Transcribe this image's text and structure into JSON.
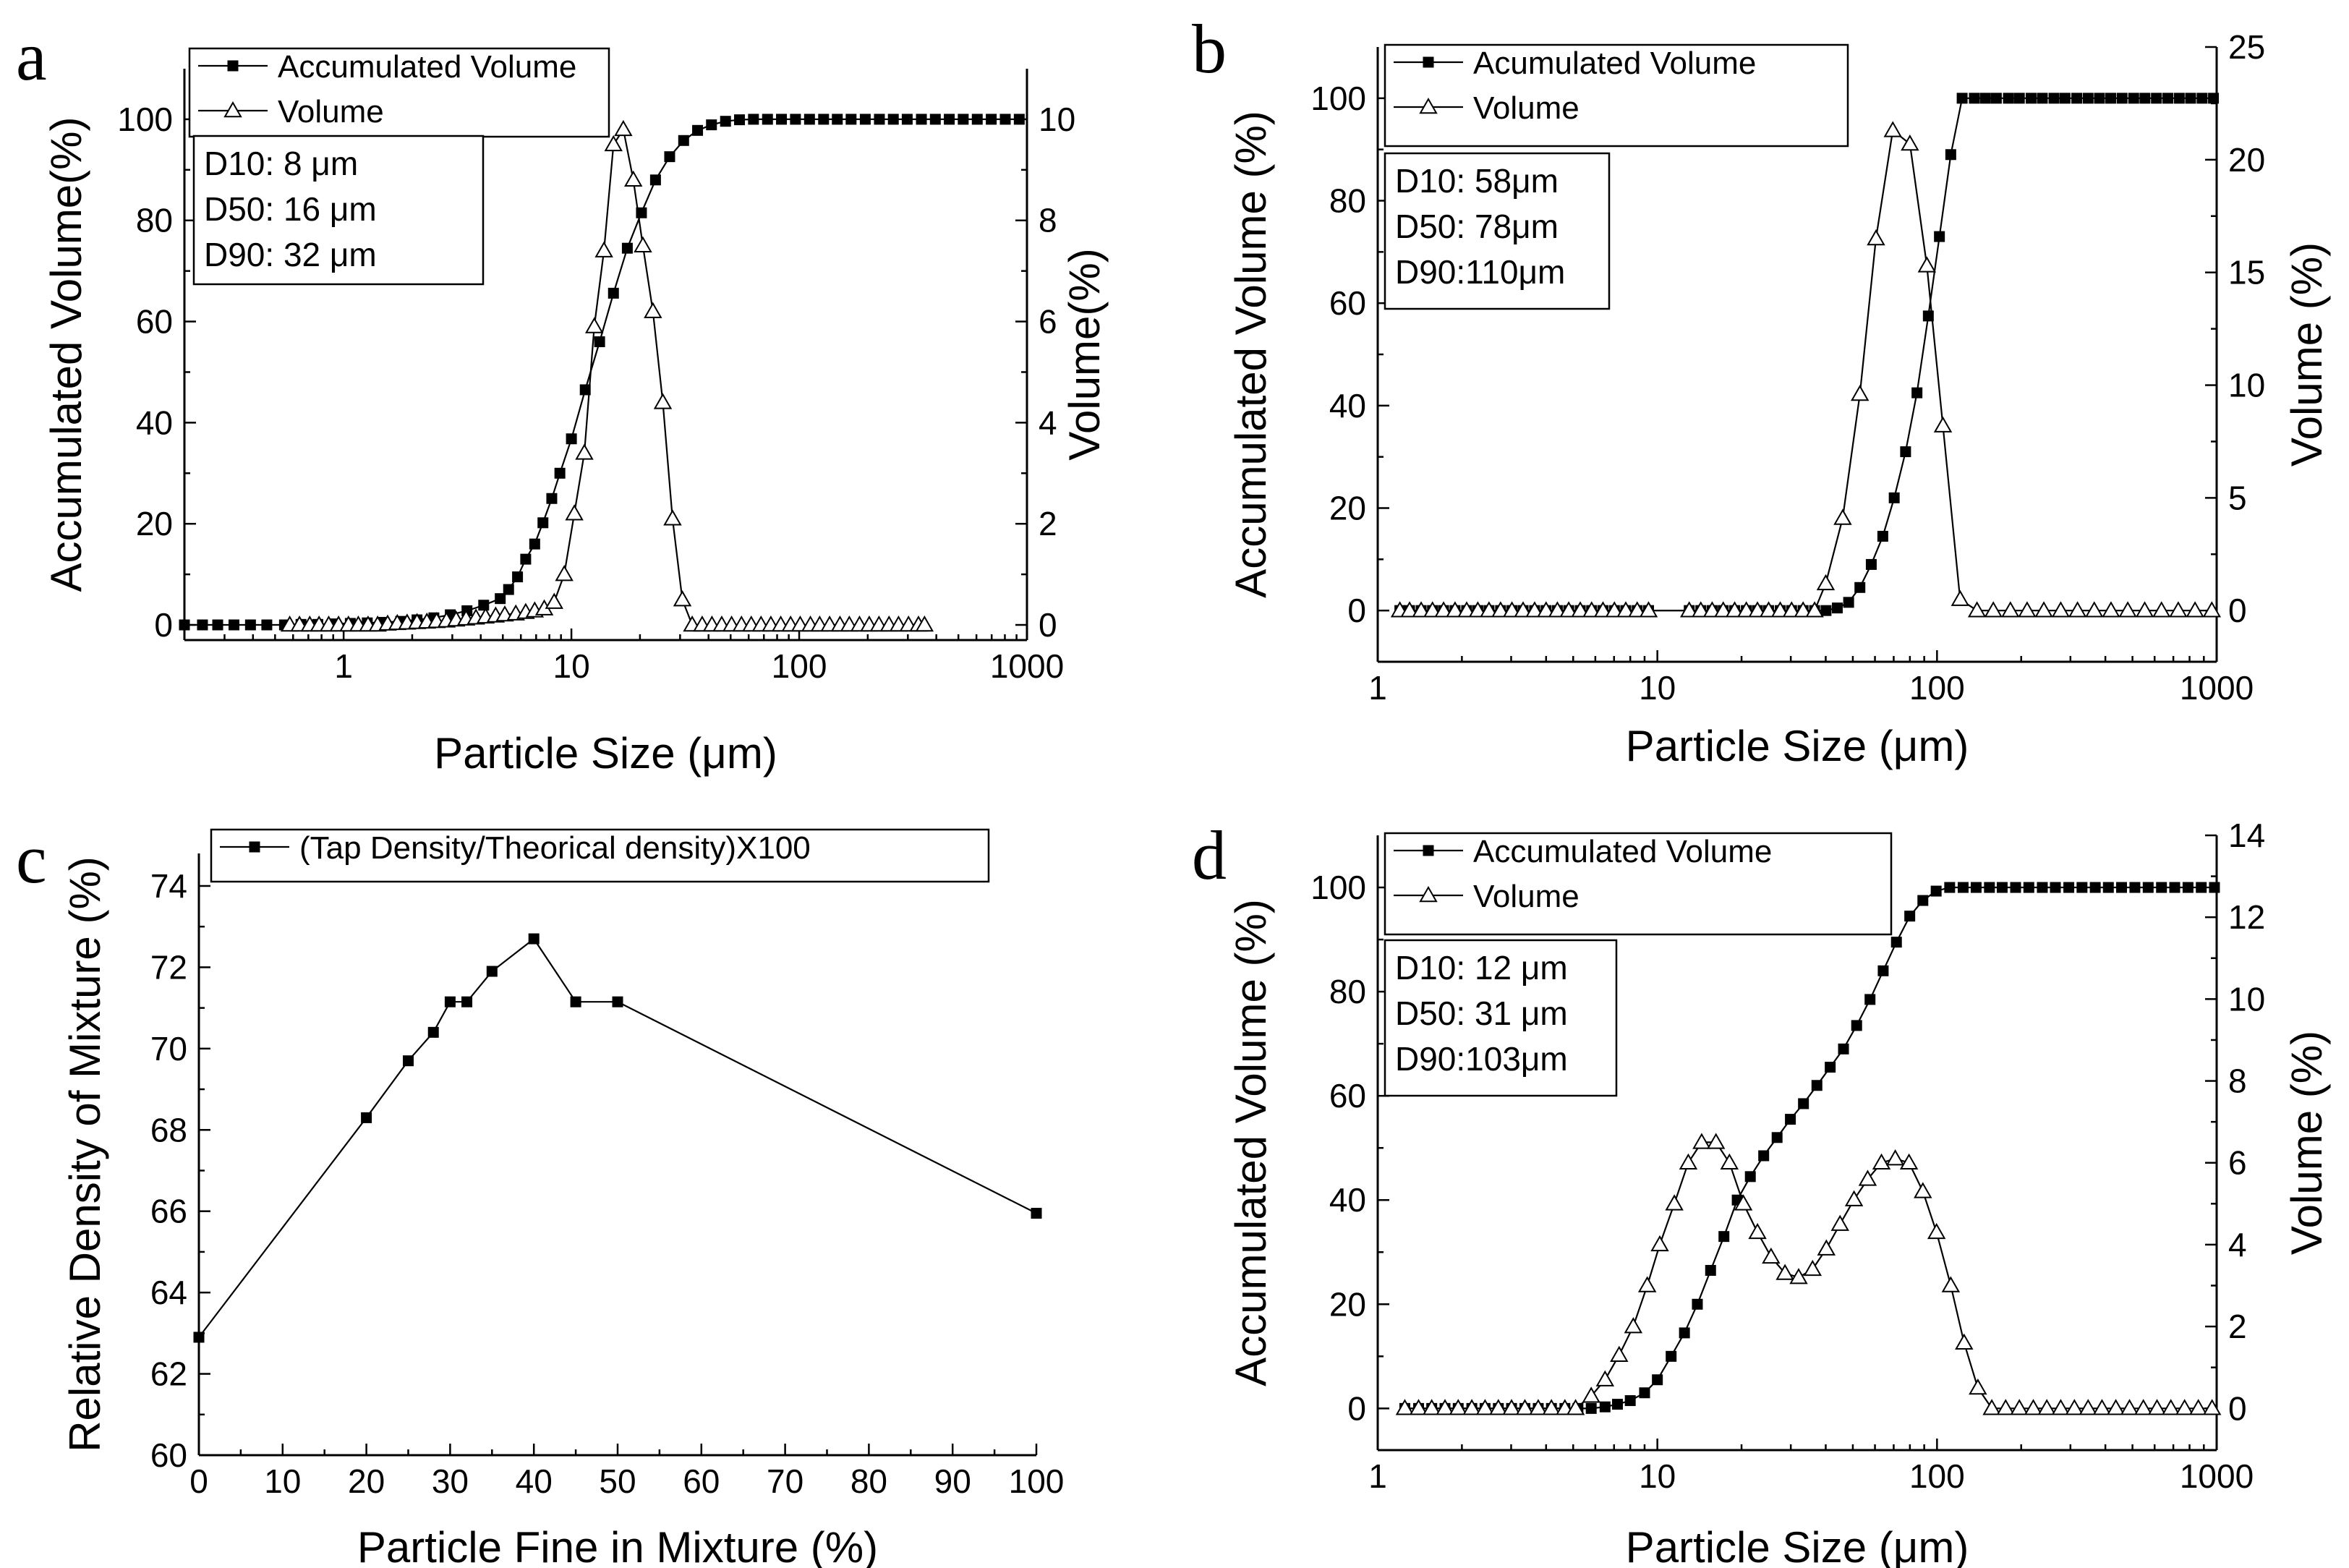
{
  "chart_data": [
    {
      "panel": "a",
      "type": "line",
      "xscale": "log",
      "xlim": [
        0.2,
        1000
      ],
      "xticks": [
        1,
        10,
        100,
        1000
      ],
      "xtick_labels": [
        "1",
        "10",
        "100",
        "1000"
      ],
      "xlabel": "Particle Size (μm)",
      "ylabel": "Accumulated Volume(%)",
      "ylim": [
        -3,
        110
      ],
      "yticks": [
        0,
        20,
        40,
        60,
        80,
        100
      ],
      "ytick_labels": [
        "0",
        "20",
        "40",
        "60",
        "80",
        "100"
      ],
      "y2label": "Volume(%)",
      "y2lim": [
        -0.3,
        11
      ],
      "y2ticks": [
        0,
        2,
        4,
        6,
        8,
        10
      ],
      "y2tick_labels": [
        "0",
        "2",
        "4",
        "6",
        "8",
        "10"
      ],
      "info_lines": [
        "D10:   8 μm",
        "D50: 16 μm",
        "D90: 32 μm"
      ],
      "series": [
        {
          "name": "Accumulated Volume",
          "axis": "left",
          "marker": "square",
          "x": [
            0.2,
            0.24,
            0.28,
            0.33,
            0.39,
            0.46,
            0.55,
            0.65,
            0.77,
            0.91,
            1.07,
            1.27,
            1.5,
            1.78,
            2.1,
            2.49,
            2.94,
            3.48,
            4.12,
            4.87,
            5.3,
            5.8,
            6.3,
            6.9,
            7.5,
            8.2,
            8.9,
            10,
            11.5,
            13.3,
            15.3,
            17.6,
            20.3,
            23.4,
            27,
            31.1,
            35.8,
            41.2,
            47.5,
            54.7,
            63,
            72.6,
            83.6,
            96.3,
            111,
            128,
            147,
            169,
            195,
            225,
            259,
            298,
            344,
            396,
            456,
            525,
            605,
            697,
            803,
            925
          ],
          "values": [
            0,
            0,
            0,
            0,
            0,
            0,
            0,
            0.1,
            0.1,
            0.2,
            0.3,
            0.4,
            0.5,
            0.7,
            1,
            1.4,
            2,
            2.8,
            3.9,
            5.2,
            7,
            9.5,
            13,
            16,
            20.2,
            25,
            30,
            36.8,
            46.5,
            56,
            65.6,
            74.5,
            81.5,
            88,
            92.6,
            95.8,
            97.8,
            98.9,
            99.6,
            99.9,
            100,
            100,
            100,
            100,
            100,
            100,
            100,
            100,
            100,
            100,
            100,
            100,
            100,
            100,
            100,
            100,
            100,
            100,
            100,
            100
          ]
        },
        {
          "name": "Volume",
          "axis": "right",
          "marker": "triangle",
          "x": [
            0.58,
            0.64,
            0.71,
            0.78,
            0.86,
            0.95,
            1.05,
            1.16,
            1.28,
            1.41,
            1.56,
            1.72,
            1.9,
            2.1,
            2.32,
            2.56,
            2.83,
            3.12,
            3.45,
            3.81,
            4.2,
            4.65,
            5.1,
            5.7,
            6.3,
            6.9,
            7.6,
            8.4,
            9.3,
            10.3,
            11.4,
            12.6,
            13.9,
            15.3,
            16.9,
            18.7,
            20.6,
            22.8,
            25.2,
            27.8,
            30.7,
            33.9,
            37.5,
            41.4,
            45.7,
            50.5,
            55.8,
            61.6,
            68,
            75.1,
            83,
            91.7,
            101,
            112,
            123,
            136,
            151,
            166,
            184,
            203,
            224,
            248,
            273,
            302,
            334,
            355
          ],
          "values": [
            0,
            0,
            0,
            0,
            0,
            0,
            0,
            0,
            0,
            0,
            0.02,
            0.03,
            0.04,
            0.05,
            0.06,
            0.07,
            0.08,
            0.1,
            0.12,
            0.14,
            0.16,
            0.18,
            0.2,
            0.22,
            0.25,
            0.28,
            0.32,
            0.45,
            1,
            2.2,
            3.4,
            5.9,
            7.4,
            9.5,
            9.8,
            8.8,
            7.5,
            6.2,
            4.4,
            2.1,
            0.5,
            0,
            0,
            0,
            0,
            0,
            0,
            0,
            0,
            0,
            0,
            0,
            0,
            0,
            0,
            0,
            0,
            0,
            0,
            0,
            0,
            0,
            0,
            0,
            0,
            0
          ]
        }
      ]
    },
    {
      "panel": "b",
      "type": "line",
      "xscale": "log",
      "xlim": [
        1,
        1000
      ],
      "xticks": [
        1,
        10,
        100,
        1000
      ],
      "xtick_labels": [
        "1",
        "10",
        "100",
        "1000"
      ],
      "xlabel": "Particle Size (μm)",
      "ylabel": "Accumulated Volume (%)",
      "ylim": [
        -10,
        110
      ],
      "yticks": [
        0,
        20,
        40,
        60,
        80,
        100
      ],
      "ytick_labels": [
        "0",
        "20",
        "40",
        "60",
        "80",
        "100"
      ],
      "y2label": "Volume (%)",
      "y2lim": [
        -2.27,
        25
      ],
      "y2ticks": [
        0,
        5,
        10,
        15,
        20,
        25
      ],
      "y2tick_labels": [
        "0",
        "5",
        "10",
        "15",
        "20",
        "25"
      ],
      "info_lines": [
        "D10: 58μm",
        "D50: 78μm",
        "D90:110μm"
      ],
      "series": [
        {
          "name": "Acumulated Volume",
          "axis": "left",
          "marker": "square",
          "x": [
            1.2,
            1.3,
            1.43,
            1.57,
            1.72,
            1.89,
            2.08,
            2.28,
            2.5,
            2.75,
            3.02,
            3.31,
            3.64,
            4,
            4.39,
            4.82,
            5.3,
            5.82,
            6.39,
            7.02,
            7.71,
            8.47,
            9.3,
            13,
            14.3,
            15.7,
            17.2,
            18.9,
            20.8,
            22.8,
            25,
            27.5,
            30.2,
            33.2,
            36.5,
            40.1,
            44,
            48.3,
            53,
            58.2,
            64,
            70.3,
            77.2,
            84.8,
            93.1,
            102,
            112,
            123,
            136,
            149,
            163,
            180,
            197,
            217,
            238,
            262,
            287,
            316,
            347,
            381,
            418,
            459,
            505,
            554,
            609,
            669,
            735,
            807,
            887,
            974
          ],
          "values": [
            0,
            0,
            0,
            0,
            0,
            0,
            0,
            0,
            0,
            0,
            0,
            0,
            0,
            0,
            0,
            0,
            0,
            0,
            0,
            0,
            0,
            0,
            0,
            0,
            0,
            0,
            0,
            0,
            0,
            0,
            0,
            0,
            0,
            0,
            0,
            0,
            0.5,
            1.6,
            4.5,
            9,
            14.5,
            22,
            31,
            42.5,
            57.5,
            73,
            89,
            100,
            100,
            100,
            100,
            100,
            100,
            100,
            100,
            100,
            100,
            100,
            100,
            100,
            100,
            100,
            100,
            100,
            100,
            100,
            100,
            100,
            100,
            100
          ]
        },
        {
          "name": "Volume",
          "axis": "right",
          "marker": "triangle",
          "x": [
            1.2,
            1.3,
            1.43,
            1.57,
            1.72,
            1.89,
            2.08,
            2.28,
            2.5,
            2.75,
            3.02,
            3.31,
            3.64,
            4,
            4.39,
            4.82,
            5.3,
            5.82,
            6.39,
            7.02,
            7.71,
            8.47,
            9.3,
            13,
            14.3,
            15.7,
            17.2,
            18.9,
            20.8,
            22.8,
            25,
            27.5,
            30.2,
            33.2,
            36.5,
            40,
            46,
            53,
            60.5,
            69.5,
            80,
            92,
            105,
            121,
            139,
            159,
            183,
            210,
            241,
            277,
            318,
            365,
            419,
            481,
            553,
            635,
            729,
            837,
            961
          ],
          "values": [
            0,
            0,
            0,
            0,
            0,
            0,
            0,
            0,
            0,
            0,
            0,
            0,
            0,
            0,
            0,
            0,
            0,
            0,
            0,
            0,
            0,
            0,
            0,
            0,
            0,
            0,
            0,
            0,
            0,
            0,
            0,
            0,
            0,
            0,
            0,
            1.2,
            4.1,
            9.6,
            16.5,
            21.3,
            20.7,
            15.3,
            8.2,
            0.5,
            0,
            0,
            0,
            0,
            0,
            0,
            0,
            0,
            0,
            0,
            0,
            0,
            0,
            0,
            0
          ]
        }
      ]
    },
    {
      "panel": "c",
      "type": "line",
      "xscale": "linear",
      "xlim": [
        0,
        100
      ],
      "xticks": [
        0,
        10,
        20,
        30,
        40,
        50,
        60,
        70,
        80,
        90,
        100
      ],
      "xtick_labels": [
        "0",
        "10",
        "20",
        "30",
        "40",
        "50",
        "60",
        "70",
        "80",
        "90",
        "100"
      ],
      "xlabel": "Particle Fine in Mixture (%)",
      "ylabel": "Relative Density of Mixture (%)",
      "ylim": [
        60,
        74.8
      ],
      "yticks": [
        60,
        62,
        64,
        66,
        68,
        70,
        72,
        74
      ],
      "ytick_labels": [
        "60",
        "62",
        "64",
        "66",
        "68",
        "70",
        "72",
        "74"
      ],
      "series": [
        {
          "name": "(Tap Density/Theorical density)X100",
          "axis": "left",
          "marker": "square",
          "x": [
            0,
            20,
            25,
            28,
            30,
            32,
            35,
            40,
            45,
            50,
            100
          ],
          "values": [
            62.9,
            68.3,
            69.7,
            70.4,
            71.15,
            71.15,
            71.9,
            72.7,
            71.15,
            71.15,
            65.95
          ]
        }
      ]
    },
    {
      "panel": "d",
      "type": "line",
      "xscale": "log",
      "xlim": [
        1,
        1000
      ],
      "xticks": [
        1,
        10,
        100,
        1000
      ],
      "xtick_labels": [
        "1",
        "10",
        "100",
        "1000"
      ],
      "xlabel": "Particle Size (μm)",
      "ylabel": "Accumulated Volume (%)",
      "ylim": [
        -8,
        110
      ],
      "yticks": [
        0,
        20,
        40,
        60,
        80,
        100
      ],
      "ytick_labels": [
        "0",
        "20",
        "40",
        "60",
        "80",
        "100"
      ],
      "y2label": "Volume (%)",
      "y2lim": [
        -1.02,
        14
      ],
      "y2ticks": [
        0,
        2,
        4,
        6,
        8,
        10,
        12,
        14
      ],
      "y2tick_labels": [
        "0",
        "2",
        "4",
        "6",
        "8",
        "10",
        "12",
        "14"
      ],
      "info_lines": [
        "D10: 12 μm",
        "D50: 31 μm",
        "D90:103μm"
      ],
      "series": [
        {
          "name": "Accumulated Volume",
          "axis": "left",
          "marker": "square",
          "x": [
            1.25,
            1.4,
            1.56,
            1.74,
            1.94,
            2.17,
            2.42,
            2.7,
            3.01,
            3.36,
            3.75,
            4.18,
            4.67,
            5.2,
            5.8,
            6.5,
            7.2,
            8,
            9,
            10,
            11.2,
            12.5,
            13.9,
            15.5,
            17.3,
            19.3,
            21.5,
            24,
            26.8,
            29.9,
            33.3,
            37.2,
            41.5,
            46.3,
            51.6,
            57.6,
            64.2,
            71.6,
            79.9,
            89,
            99.3,
            111,
            124,
            138,
            154,
            171,
            191,
            213,
            238,
            265,
            296,
            330,
            368,
            410,
            457,
            510,
            569,
            635,
            708,
            790,
            881,
            982
          ],
          "values": [
            0,
            0,
            0,
            0,
            0,
            0,
            0,
            0,
            0,
            0,
            0,
            0,
            0,
            0,
            0,
            0.3,
            0.8,
            1.5,
            3,
            5.5,
            10,
            14.5,
            20,
            26.5,
            33,
            40,
            44.5,
            48.5,
            52,
            55.5,
            58.5,
            62,
            65.5,
            69,
            73.5,
            78.5,
            84,
            89.5,
            94.5,
            97.5,
            99.3,
            100,
            100,
            100,
            100,
            100,
            100,
            100,
            100,
            100,
            100,
            100,
            100,
            100,
            100,
            100,
            100,
            100,
            100,
            100,
            100,
            100
          ]
        },
        {
          "name": "Volume",
          "axis": "right",
          "marker": "triangle",
          "x": [
            1.25,
            1.4,
            1.56,
            1.74,
            1.94,
            2.17,
            2.42,
            2.7,
            3.01,
            3.36,
            3.75,
            4.18,
            4.67,
            5.1,
            5.8,
            6.5,
            7.3,
            8.2,
            9.2,
            10.2,
            11.5,
            12.9,
            14.4,
            16.2,
            18.1,
            20.3,
            22.8,
            25.5,
            28.6,
            32,
            35.9,
            40.2,
            45,
            50.5,
            56.5,
            63.3,
            70.9,
            79.4,
            89,
            99.6,
            112,
            125,
            140,
            157,
            176,
            197,
            221,
            247,
            277,
            310,
            347,
            389,
            436,
            488,
            547,
            612,
            686,
            768,
            860,
            963
          ],
          "values": [
            0,
            0,
            0,
            0,
            0,
            0,
            0,
            0,
            0,
            0,
            0,
            0,
            0,
            0,
            0.3,
            0.7,
            1.3,
            2,
            3,
            4,
            5,
            6,
            6.5,
            6.5,
            6,
            5,
            4.3,
            3.7,
            3.3,
            3.2,
            3.4,
            3.9,
            4.5,
            5.1,
            5.6,
            6,
            6.1,
            6,
            5.3,
            4.3,
            3,
            1.6,
            0.5,
            0,
            0,
            0,
            0,
            0,
            0,
            0,
            0,
            0,
            0,
            0,
            0,
            0,
            0,
            0,
            0,
            0
          ]
        }
      ]
    }
  ]
}
